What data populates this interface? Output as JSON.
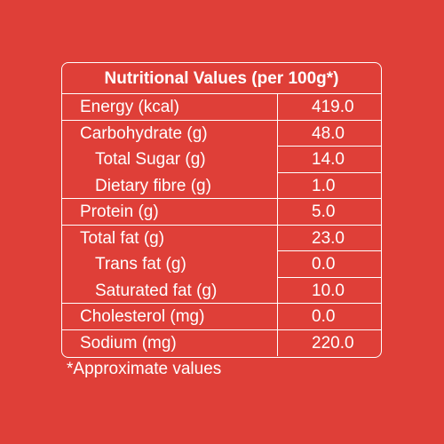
{
  "title": "Nutritional Values (per 100g*)",
  "rows": [
    {
      "name": "Energy (kcal)",
      "value": "419.0"
    },
    {
      "name": "Carbohydrate (g)",
      "value": "48.0"
    },
    {
      "name": "Total Sugar (g)",
      "value": "14.0"
    },
    {
      "name": "Dietary fibre (g)",
      "value": "1.0"
    },
    {
      "name": "Protein (g)",
      "value": "5.0"
    },
    {
      "name": "Total fat (g)",
      "value": "23.0"
    },
    {
      "name": "Trans fat (g)",
      "value": "0.0"
    },
    {
      "name": "Saturated fat (g)",
      "value": "10.0"
    },
    {
      "name": "Cholesterol (mg)",
      "value": "0.0"
    },
    {
      "name": "Sodium (mg)",
      "value": "220.0"
    }
  ],
  "footnote": "*Approximate values",
  "colors": {
    "background": "#df3f38",
    "text": "#ffffff"
  }
}
